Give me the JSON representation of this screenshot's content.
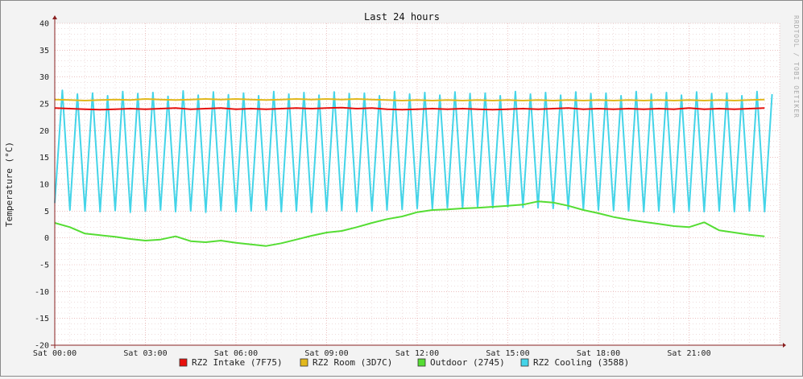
{
  "chart_data": {
    "type": "line",
    "title": "Last 24 hours",
    "ylabel": "Temperature (°C)",
    "xlabel": "",
    "watermark": "RRDTOOL / TOBI OETIKER",
    "ylim": [
      -20,
      40
    ],
    "yticks": [
      40,
      35,
      30,
      25,
      20,
      15,
      10,
      5,
      0,
      -5,
      -10,
      -15,
      -20
    ],
    "xlim": [
      "Sat 00:00",
      "Sat 24:00"
    ],
    "xticks": [
      "Sat 00:00",
      "Sat 03:00",
      "Sat 06:00",
      "Sat 09:00",
      "Sat 12:00",
      "Sat 15:00",
      "Sat 18:00",
      "Sat 21:00"
    ],
    "grid": true,
    "legend_position": "bottom",
    "colors": {
      "background": "#f3f3f3",
      "plot_background": "#ffffff",
      "grid_minor": "#e4c8c8",
      "grid_major": "#e09a9a",
      "axis": "#8a2020"
    },
    "series": [
      {
        "name": "RZ2 Intake (7F75)",
        "color": "#e8100c",
        "x": [
          0,
          0.5,
          1,
          1.5,
          2,
          2.5,
          3,
          3.5,
          4,
          4.5,
          5,
          5.5,
          6,
          6.5,
          7,
          7.5,
          8,
          8.5,
          9,
          9.5,
          10,
          10.5,
          11,
          11.5,
          12,
          12.5,
          13,
          13.5,
          14,
          14.5,
          15,
          15.5,
          16,
          16.5,
          17,
          17.5,
          18,
          18.5,
          19,
          19.5,
          20,
          20.5,
          21,
          21.5,
          22,
          22.5,
          23,
          23.5
        ],
        "values": [
          24.2,
          24.1,
          24.0,
          23.9,
          24.0,
          24.1,
          24.0,
          24.1,
          24.2,
          24.0,
          24.1,
          24.2,
          24.0,
          24.1,
          24.0,
          24.1,
          24.2,
          24.1,
          24.2,
          24.3,
          24.1,
          24.2,
          24.0,
          23.9,
          24.0,
          24.1,
          24.0,
          24.1,
          24.0,
          23.9,
          24.0,
          24.1,
          24.0,
          24.1,
          24.2,
          24.0,
          24.1,
          24.0,
          24.1,
          24.0,
          24.1,
          24.0,
          24.2,
          24.0,
          24.1,
          24.0,
          24.1,
          24.2
        ]
      },
      {
        "name": "RZ2 Room (3D7C)",
        "color": "#e2b81c",
        "x": [
          0,
          0.5,
          1,
          1.5,
          2,
          2.5,
          3,
          3.5,
          4,
          4.5,
          5,
          5.5,
          6,
          6.5,
          7,
          7.5,
          8,
          8.5,
          9,
          9.5,
          10,
          10.5,
          11,
          11.5,
          12,
          12.5,
          13,
          13.5,
          14,
          14.5,
          15,
          15.5,
          16,
          16.5,
          17,
          17.5,
          18,
          18.5,
          19,
          19.5,
          20,
          20.5,
          21,
          21.5,
          22,
          22.5,
          23,
          23.5
        ],
        "values": [
          25.8,
          25.7,
          25.6,
          25.7,
          25.8,
          25.7,
          25.9,
          25.8,
          25.7,
          25.8,
          25.9,
          25.8,
          25.9,
          25.8,
          25.7,
          25.8,
          25.9,
          25.8,
          25.9,
          25.8,
          25.9,
          25.8,
          25.7,
          25.6,
          25.7,
          25.6,
          25.7,
          25.6,
          25.7,
          25.6,
          25.7,
          25.6,
          25.7,
          25.6,
          25.7,
          25.6,
          25.7,
          25.6,
          25.7,
          25.6,
          25.7,
          25.6,
          25.7,
          25.6,
          25.7,
          25.6,
          25.7,
          25.8
        ]
      },
      {
        "name": "Outdoor (2745)",
        "color": "#55dd33",
        "x": [
          0,
          0.5,
          1,
          1.5,
          2,
          2.5,
          3,
          3.5,
          4,
          4.5,
          5,
          5.5,
          6,
          6.5,
          7,
          7.5,
          8,
          8.5,
          9,
          9.5,
          10,
          10.5,
          11,
          11.5,
          12,
          12.5,
          13,
          13.5,
          14,
          14.5,
          15,
          15.5,
          16,
          16.5,
          17,
          17.5,
          18,
          18.5,
          19,
          19.5,
          20,
          20.5,
          21,
          21.5,
          22,
          22.5,
          23,
          23.5
        ],
        "values": [
          2.8,
          2.0,
          0.8,
          0.5,
          0.2,
          -0.2,
          -0.5,
          -0.3,
          0.3,
          -0.6,
          -0.8,
          -0.5,
          -0.9,
          -1.2,
          -1.5,
          -1.0,
          -0.3,
          0.4,
          1.0,
          1.3,
          2.0,
          2.8,
          3.5,
          4.0,
          4.8,
          5.2,
          5.3,
          5.5,
          5.6,
          5.8,
          6.0,
          6.2,
          6.8,
          6.6,
          6.0,
          5.2,
          4.6,
          3.9,
          3.4,
          3.0,
          2.6,
          2.2,
          2.0,
          2.9,
          1.4,
          1.0,
          0.6,
          0.3
        ]
      },
      {
        "name": "RZ2 Cooling (3588)",
        "color": "#44d4e8",
        "x": [
          0,
          0.25,
          0.5,
          0.75,
          1,
          1.25,
          1.5,
          1.75,
          2,
          2.25,
          2.5,
          2.75,
          3,
          3.25,
          3.5,
          3.75,
          4,
          4.25,
          4.5,
          4.75,
          5,
          5.25,
          5.5,
          5.75,
          6,
          6.25,
          6.5,
          6.75,
          7,
          7.25,
          7.5,
          7.75,
          8,
          8.25,
          8.5,
          8.75,
          9,
          9.25,
          9.5,
          9.75,
          10,
          10.25,
          10.5,
          10.75,
          11,
          11.25,
          11.5,
          11.75,
          12,
          12.25,
          12.5,
          12.75,
          13,
          13.25,
          13.5,
          13.75,
          14,
          14.25,
          14.5,
          14.75,
          15,
          15.25,
          15.5,
          15.75,
          16,
          16.25,
          16.5,
          16.75,
          17,
          17.25,
          17.5,
          17.75,
          18,
          18.25,
          18.5,
          18.75,
          19,
          19.25,
          19.5,
          19.75,
          20,
          20.25,
          20.5,
          20.75,
          21,
          21.25,
          21.5,
          21.75,
          22,
          22.25,
          22.5,
          22.75,
          23,
          23.25,
          23.5,
          23.75
        ],
        "values": [
          6.5,
          27.5,
          5.2,
          26.8,
          5.0,
          27.0,
          4.9,
          26.5,
          5.1,
          27.3,
          4.8,
          26.9,
          5.0,
          27.1,
          5.2,
          26.4,
          4.9,
          27.4,
          5.0,
          26.6,
          4.8,
          27.2,
          5.1,
          26.7,
          4.9,
          27.0,
          5.0,
          26.5,
          5.2,
          27.3,
          4.9,
          26.8,
          5.0,
          27.1,
          4.8,
          26.6,
          5.0,
          27.2,
          5.1,
          26.9,
          4.9,
          27.0,
          5.0,
          26.5,
          5.2,
          27.3,
          5.3,
          26.8,
          5.5,
          27.1,
          5.4,
          26.6,
          5.6,
          27.2,
          5.5,
          26.9,
          5.7,
          27.0,
          5.6,
          26.5,
          5.8,
          27.3,
          5.7,
          26.8,
          5.6,
          27.1,
          5.5,
          26.6,
          5.4,
          27.2,
          5.3,
          26.9,
          5.2,
          27.0,
          5.1,
          26.5,
          5.0,
          27.3,
          4.9,
          26.8,
          5.0,
          27.1,
          4.8,
          26.6,
          5.0,
          27.2,
          4.9,
          26.9,
          5.0,
          27.0,
          4.9,
          26.5,
          5.0,
          27.3,
          4.9,
          26.8
        ]
      }
    ]
  }
}
